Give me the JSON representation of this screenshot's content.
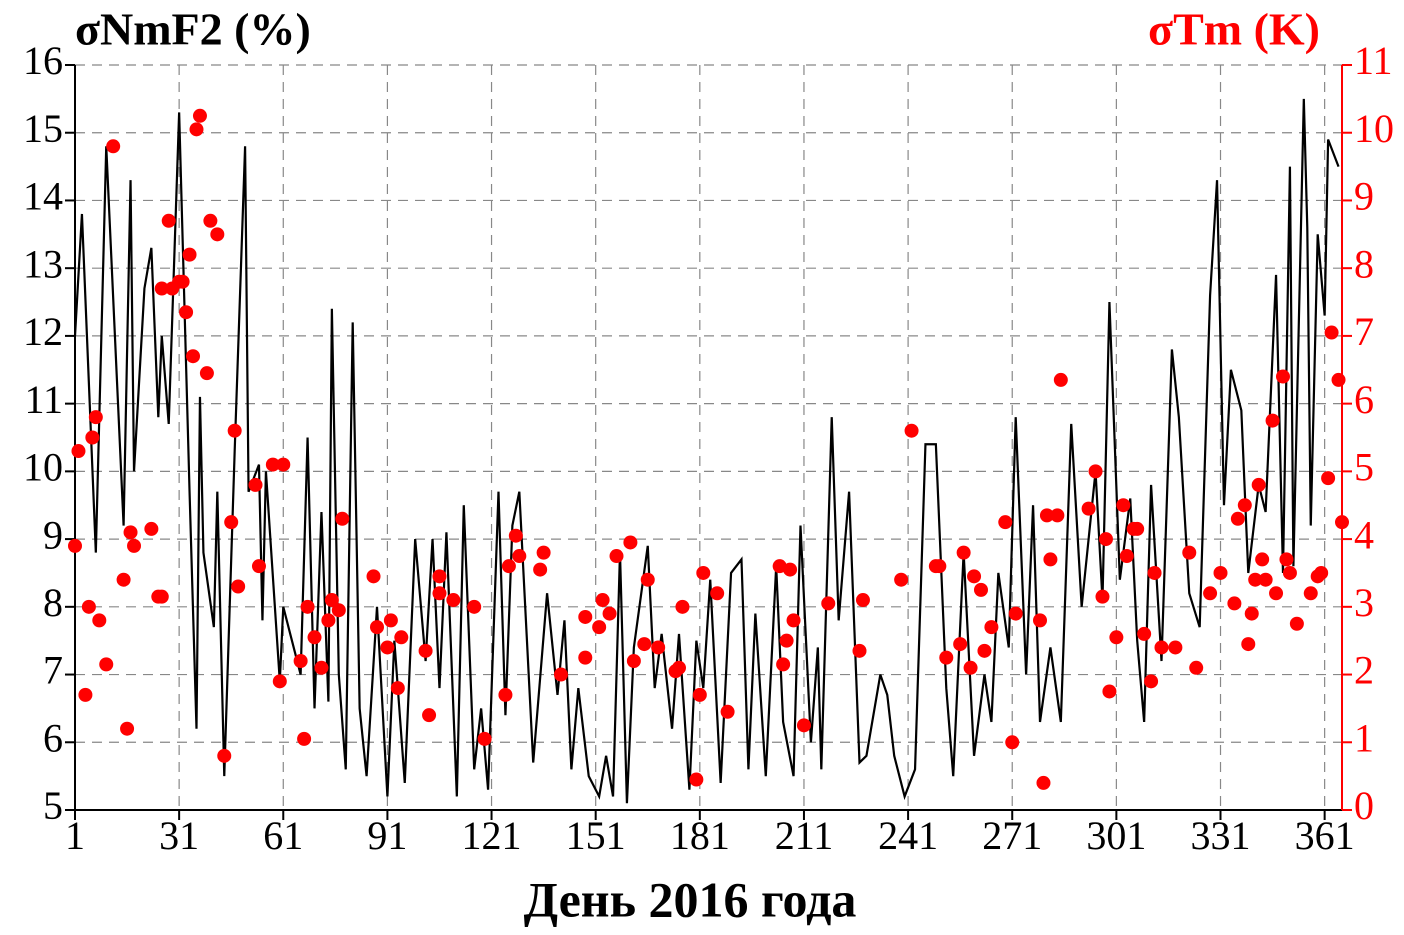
{
  "chart_data": {
    "type": "line",
    "ylabel": "σNmF2 (%)",
    "y2label": "σTm (K)",
    "xlabel": "День 2016 года",
    "xlim": [
      1,
      366
    ],
    "xticks": [
      1,
      31,
      61,
      91,
      121,
      151,
      181,
      211,
      241,
      271,
      301,
      331,
      361
    ],
    "ylim": [
      5,
      16
    ],
    "yticks": [
      5,
      6,
      7,
      8,
      9,
      10,
      11,
      12,
      13,
      14,
      15,
      16
    ],
    "y2lim": [
      0,
      11
    ],
    "y2ticks": [
      0,
      1,
      2,
      3,
      4,
      5,
      6,
      7,
      8,
      9,
      10,
      11
    ],
    "grid": true,
    "y2color": "#ff0000",
    "series": [
      {
        "type": "line",
        "color": "#000000",
        "x": [
          1,
          3,
          7,
          10,
          15,
          17,
          18,
          21,
          23,
          25,
          26,
          28,
          31,
          34,
          36,
          37,
          38,
          41,
          42,
          44,
          47,
          50,
          51,
          54,
          55,
          56,
          60,
          61,
          66,
          68,
          70,
          72,
          74,
          75,
          77,
          79,
          81,
          83,
          85,
          88,
          91,
          93,
          96,
          99,
          102,
          104,
          106,
          108,
          111,
          113,
          116,
          118,
          120,
          123,
          125,
          127,
          129,
          133,
          137,
          140,
          142,
          144,
          146,
          149,
          152,
          154,
          156,
          158,
          160,
          162,
          166,
          168,
          170,
          173,
          175,
          178,
          180,
          182,
          184,
          187,
          190,
          193,
          195,
          197,
          200,
          203,
          205,
          208,
          210,
          213,
          215,
          216,
          219,
          221,
          224,
          227,
          229,
          233,
          235,
          237,
          240,
          243,
          246,
          249,
          252,
          254,
          257,
          260,
          263,
          265,
          267,
          270,
          272,
          275,
          277,
          279,
          282,
          285,
          288,
          291,
          295,
          297,
          299,
          302,
          305,
          307,
          309,
          311,
          314,
          317,
          319,
          322,
          325,
          328,
          330,
          332,
          334,
          337,
          339,
          342,
          344,
          347,
          349,
          351,
          352,
          355,
          356,
          357,
          359,
          361,
          362,
          365
        ],
        "values": [
          12,
          13.8,
          8.8,
          14.8,
          9.2,
          14.3,
          10,
          12.7,
          13.3,
          10.8,
          12,
          10.7,
          15.3,
          9.7,
          6.2,
          11.1,
          8.8,
          7.7,
          9.7,
          5.5,
          10.3,
          14.8,
          9.7,
          10.1,
          7.8,
          10,
          6.9,
          8,
          7,
          10.5,
          6.5,
          9.4,
          6.6,
          12.4,
          7,
          5.6,
          12.2,
          6.5,
          5.5,
          8,
          5.2,
          7.5,
          5.4,
          9,
          7.2,
          9,
          6.8,
          9.1,
          5.2,
          9.5,
          5.6,
          6.5,
          5.3,
          9.7,
          6.4,
          9.2,
          9.7,
          5.7,
          8.2,
          6.7,
          7.8,
          5.6,
          6.8,
          5.5,
          5.2,
          5.8,
          5.2,
          8.8,
          5.1,
          7.4,
          8.9,
          6.8,
          7.6,
          6.2,
          7.6,
          5.3,
          7.5,
          6.8,
          8.4,
          5.4,
          8.5,
          8.7,
          5.6,
          7.9,
          5.5,
          8.6,
          6.3,
          5.5,
          9.2,
          6,
          7.4,
          5.6,
          10.8,
          7.8,
          9.7,
          5.7,
          5.8,
          7,
          6.7,
          5.8,
          5.2,
          5.6,
          10.4,
          10.4,
          6.8,
          5.5,
          8.8,
          5.8,
          7,
          6.3,
          8.5,
          7.4,
          10.8,
          7,
          9.5,
          6.3,
          7.4,
          6.3,
          10.7,
          8,
          10,
          8.1,
          12.5,
          8.4,
          9.6,
          7.5,
          6.3,
          9.8,
          7.2,
          11.8,
          10.8,
          8.2,
          7.7,
          12.6,
          14.3,
          9.5,
          11.5,
          10.9,
          8.5,
          9.8,
          9.4,
          12.9,
          8.5,
          14.5,
          8.6,
          15.5,
          13.6,
          9.2,
          13.5,
          12.3,
          14.9,
          14.5
        ]
      },
      {
        "type": "scatter",
        "color": "#ff0000",
        "axis": "y2",
        "x": [
          1,
          2,
          4,
          5,
          6,
          7,
          8,
          10,
          12,
          15,
          16,
          17,
          18,
          23,
          25,
          26,
          26,
          28,
          29,
          31,
          32,
          33,
          34,
          35,
          36,
          37,
          39,
          40,
          42,
          44,
          46,
          47,
          48,
          53,
          54,
          58,
          61,
          60,
          66,
          67,
          68,
          70,
          72,
          74,
          75,
          77,
          78,
          87,
          88,
          91,
          92,
          94,
          95,
          102,
          103,
          106,
          106,
          110,
          116,
          119,
          125,
          126,
          128,
          129,
          135,
          136,
          141,
          148,
          148,
          152,
          153,
          155,
          157,
          161,
          162,
          165,
          166,
          169,
          174,
          175,
          176,
          180,
          181,
          182,
          186,
          189,
          204,
          205,
          206,
          207,
          208,
          211,
          218,
          227,
          228,
          239,
          242,
          249,
          250,
          252,
          256,
          257,
          259,
          260,
          262,
          263,
          265,
          269,
          271,
          272,
          279,
          280,
          281,
          282,
          284,
          285,
          293,
          295,
          297,
          298,
          299,
          301,
          303,
          304,
          306,
          307,
          309,
          311,
          312,
          314,
          318,
          322,
          324,
          328,
          331,
          335,
          336,
          338,
          339,
          340,
          341,
          342,
          343,
          344,
          346,
          347,
          349,
          350,
          351,
          353,
          357,
          359,
          360,
          362,
          363,
          365,
          366
        ],
        "values": [
          3.9,
          5.3,
          1.7,
          3.0,
          5.5,
          5.8,
          2.8,
          2.15,
          9.8,
          3.4,
          1.2,
          4.1,
          3.9,
          4.15,
          3.15,
          3.15,
          7.7,
          8.7,
          7.7,
          7.8,
          7.8,
          7.35,
          8.2,
          6.7,
          10.05,
          10.25,
          6.45,
          8.7,
          8.5,
          0.8,
          4.25,
          5.6,
          3.3,
          4.8,
          3.6,
          5.1,
          5.1,
          1.9,
          2.2,
          1.05,
          3.0,
          2.55,
          2.1,
          2.8,
          3.1,
          2.95,
          4.3,
          3.45,
          2.7,
          2.4,
          2.8,
          1.8,
          2.55,
          2.35,
          1.4,
          3.45,
          3.2,
          3.1,
          3.0,
          1.05,
          1.7,
          3.6,
          4.05,
          3.75,
          3.55,
          3.8,
          2.0,
          2.25,
          2.85,
          2.7,
          3.1,
          2.9,
          3.75,
          3.95,
          2.2,
          2.45,
          3.4,
          2.4,
          2.05,
          2.1,
          3.0,
          0.45,
          1.7,
          3.5,
          3.2,
          1.45,
          3.6,
          2.15,
          2.5,
          3.55,
          2.8,
          1.25,
          3.05,
          2.35,
          3.1,
          3.4,
          5.6,
          3.6,
          3.6,
          2.25,
          2.45,
          3.8,
          2.1,
          3.45,
          3.25,
          2.35,
          2.7,
          4.25,
          1.0,
          2.9,
          2.8,
          0.4,
          4.35,
          3.7,
          4.35,
          6.35,
          4.45,
          5.0,
          3.15,
          4.0,
          1.75,
          2.55,
          4.5,
          3.75,
          4.15,
          4.15,
          2.6,
          1.9,
          3.5,
          2.4,
          2.4,
          3.8,
          2.1,
          3.2,
          3.5,
          3.05,
          4.3,
          4.5,
          2.45,
          2.9,
          3.4,
          4.8,
          3.7,
          3.4,
          5.75,
          3.2,
          6.4,
          3.7,
          3.5,
          2.75,
          3.2,
          3.45,
          3.5,
          4.9,
          7.05,
          6.35,
          4.25
        ]
      }
    ]
  }
}
